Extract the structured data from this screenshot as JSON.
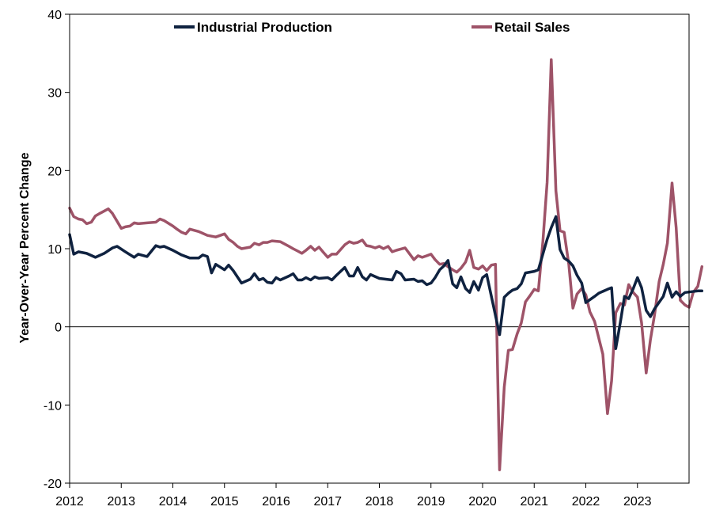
{
  "chart_data": {
    "type": "line",
    "title": "",
    "xlabel": "",
    "ylabel": "Year-Over-Year Percent Change",
    "ylim": [
      -20,
      40
    ],
    "yticks": [
      "40",
      "30",
      "20",
      "10",
      "0",
      "-10",
      "-20"
    ],
    "xlim": [
      2012.0,
      2024.0
    ],
    "xticks": [
      "2012",
      "2013",
      "2014",
      "2015",
      "2016",
      "2017",
      "2018",
      "2019",
      "2020",
      "2021",
      "2022",
      "2023"
    ],
    "grid": false,
    "legend": "top",
    "series": [
      {
        "name": "Industrial Production",
        "color": "#0f2240",
        "points": [
          [
            2012.0,
            11.8
          ],
          [
            2012.08,
            9.3
          ],
          [
            2012.17,
            9.6
          ],
          [
            2012.33,
            9.4
          ],
          [
            2012.5,
            8.9
          ],
          [
            2012.67,
            9.4
          ],
          [
            2012.83,
            10.1
          ],
          [
            2012.92,
            10.3
          ],
          [
            2013.08,
            9.6
          ],
          [
            2013.25,
            8.9
          ],
          [
            2013.33,
            9.3
          ],
          [
            2013.5,
            9.0
          ],
          [
            2013.67,
            10.4
          ],
          [
            2013.75,
            10.2
          ],
          [
            2013.83,
            10.3
          ],
          [
            2014.0,
            9.8
          ],
          [
            2014.17,
            9.2
          ],
          [
            2014.33,
            8.8
          ],
          [
            2014.5,
            8.8
          ],
          [
            2014.58,
            9.2
          ],
          [
            2014.67,
            9.0
          ],
          [
            2014.75,
            6.9
          ],
          [
            2014.83,
            8.0
          ],
          [
            2015.0,
            7.3
          ],
          [
            2015.08,
            7.9
          ],
          [
            2015.17,
            7.2
          ],
          [
            2015.33,
            5.6
          ],
          [
            2015.5,
            6.1
          ],
          [
            2015.58,
            6.8
          ],
          [
            2015.67,
            6.0
          ],
          [
            2015.75,
            6.2
          ],
          [
            2015.83,
            5.7
          ],
          [
            2015.92,
            5.6
          ],
          [
            2016.0,
            6.3
          ],
          [
            2016.08,
            6.0
          ],
          [
            2016.25,
            6.5
          ],
          [
            2016.33,
            6.8
          ],
          [
            2016.42,
            6.0
          ],
          [
            2016.5,
            6.0
          ],
          [
            2016.58,
            6.3
          ],
          [
            2016.67,
            6.0
          ],
          [
            2016.75,
            6.4
          ],
          [
            2016.83,
            6.2
          ],
          [
            2017.0,
            6.3
          ],
          [
            2017.08,
            6.0
          ],
          [
            2017.17,
            6.6
          ],
          [
            2017.33,
            7.6
          ],
          [
            2017.42,
            6.5
          ],
          [
            2017.5,
            6.5
          ],
          [
            2017.58,
            7.6
          ],
          [
            2017.67,
            6.4
          ],
          [
            2017.75,
            6.0
          ],
          [
            2017.83,
            6.7
          ],
          [
            2018.0,
            6.2
          ],
          [
            2018.25,
            6.0
          ],
          [
            2018.33,
            7.1
          ],
          [
            2018.42,
            6.8
          ],
          [
            2018.5,
            6.0
          ],
          [
            2018.67,
            6.1
          ],
          [
            2018.75,
            5.8
          ],
          [
            2018.83,
            5.9
          ],
          [
            2018.92,
            5.4
          ],
          [
            2019.0,
            5.6
          ],
          [
            2019.08,
            6.3
          ],
          [
            2019.17,
            7.3
          ],
          [
            2019.25,
            7.8
          ],
          [
            2019.33,
            8.5
          ],
          [
            2019.42,
            5.5
          ],
          [
            2019.5,
            5.0
          ],
          [
            2019.58,
            6.4
          ],
          [
            2019.67,
            4.9
          ],
          [
            2019.75,
            4.4
          ],
          [
            2019.83,
            5.8
          ],
          [
            2019.92,
            4.7
          ],
          [
            2020.0,
            6.3
          ],
          [
            2020.08,
            6.7
          ],
          [
            2020.33,
            -1.0
          ],
          [
            2020.42,
            3.8
          ],
          [
            2020.5,
            4.3
          ],
          [
            2020.58,
            4.7
          ],
          [
            2020.67,
            4.9
          ],
          [
            2020.75,
            5.5
          ],
          [
            2020.83,
            6.9
          ],
          [
            2021.0,
            7.1
          ],
          [
            2021.08,
            7.3
          ],
          [
            2021.25,
            11.2
          ],
          [
            2021.33,
            12.7
          ],
          [
            2021.42,
            14.1
          ],
          [
            2021.5,
            9.9
          ],
          [
            2021.58,
            8.8
          ],
          [
            2021.67,
            8.4
          ],
          [
            2021.75,
            7.8
          ],
          [
            2021.83,
            6.6
          ],
          [
            2021.92,
            5.6
          ],
          [
            2022.0,
            3.1
          ],
          [
            2022.17,
            3.9
          ],
          [
            2022.25,
            4.3
          ],
          [
            2022.42,
            4.8
          ],
          [
            2022.5,
            5.0
          ],
          [
            2022.58,
            -2.8
          ],
          [
            2022.67,
            0.6
          ],
          [
            2022.75,
            3.9
          ],
          [
            2022.83,
            3.6
          ],
          [
            2022.92,
            4.9
          ],
          [
            2023.0,
            6.3
          ],
          [
            2023.08,
            5.0
          ],
          [
            2023.17,
            2.1
          ],
          [
            2023.25,
            1.3
          ],
          [
            2023.33,
            2.3
          ],
          [
            2023.5,
            3.9
          ],
          [
            2023.58,
            5.6
          ],
          [
            2023.67,
            3.8
          ],
          [
            2023.75,
            4.5
          ],
          [
            2023.83,
            3.9
          ],
          [
            2023.92,
            4.4
          ],
          [
            2024.17,
            4.6
          ],
          [
            2024.25,
            4.6
          ]
        ]
      },
      {
        "name": "Retail Sales",
        "color": "#9e5368",
        "points": [
          [
            2012.0,
            15.2
          ],
          [
            2012.08,
            14.1
          ],
          [
            2012.17,
            13.8
          ],
          [
            2012.25,
            13.7
          ],
          [
            2012.33,
            13.2
          ],
          [
            2012.42,
            13.4
          ],
          [
            2012.5,
            14.2
          ],
          [
            2012.58,
            14.5
          ],
          [
            2012.75,
            15.1
          ],
          [
            2012.83,
            14.5
          ],
          [
            2013.0,
            12.6
          ],
          [
            2013.08,
            12.8
          ],
          [
            2013.17,
            12.9
          ],
          [
            2013.25,
            13.3
          ],
          [
            2013.33,
            13.2
          ],
          [
            2013.5,
            13.3
          ],
          [
            2013.67,
            13.4
          ],
          [
            2013.75,
            13.8
          ],
          [
            2013.83,
            13.6
          ],
          [
            2014.0,
            12.9
          ],
          [
            2014.08,
            12.5
          ],
          [
            2014.17,
            12.1
          ],
          [
            2014.25,
            11.9
          ],
          [
            2014.33,
            12.5
          ],
          [
            2014.5,
            12.2
          ],
          [
            2014.67,
            11.7
          ],
          [
            2014.83,
            11.5
          ],
          [
            2015.0,
            11.9
          ],
          [
            2015.08,
            11.2
          ],
          [
            2015.17,
            10.8
          ],
          [
            2015.25,
            10.3
          ],
          [
            2015.33,
            10.0
          ],
          [
            2015.5,
            10.2
          ],
          [
            2015.58,
            10.7
          ],
          [
            2015.67,
            10.5
          ],
          [
            2015.75,
            10.8
          ],
          [
            2015.83,
            10.8
          ],
          [
            2015.92,
            11.0
          ],
          [
            2016.08,
            10.9
          ],
          [
            2016.25,
            10.3
          ],
          [
            2016.33,
            10.0
          ],
          [
            2016.42,
            9.7
          ],
          [
            2016.5,
            9.4
          ],
          [
            2016.58,
            9.8
          ],
          [
            2016.67,
            10.3
          ],
          [
            2016.75,
            9.8
          ],
          [
            2016.83,
            10.2
          ],
          [
            2016.92,
            9.5
          ],
          [
            2017.0,
            8.9
          ],
          [
            2017.08,
            9.3
          ],
          [
            2017.17,
            9.3
          ],
          [
            2017.25,
            9.9
          ],
          [
            2017.33,
            10.5
          ],
          [
            2017.42,
            10.9
          ],
          [
            2017.5,
            10.7
          ],
          [
            2017.58,
            10.8
          ],
          [
            2017.67,
            11.1
          ],
          [
            2017.75,
            10.4
          ],
          [
            2017.83,
            10.3
          ],
          [
            2017.92,
            10.1
          ],
          [
            2018.0,
            10.3
          ],
          [
            2018.08,
            10.0
          ],
          [
            2018.17,
            10.3
          ],
          [
            2018.25,
            9.6
          ],
          [
            2018.33,
            9.8
          ],
          [
            2018.5,
            10.1
          ],
          [
            2018.67,
            8.6
          ],
          [
            2018.75,
            9.1
          ],
          [
            2018.83,
            8.9
          ],
          [
            2018.92,
            9.1
          ],
          [
            2019.0,
            9.3
          ],
          [
            2019.08,
            8.6
          ],
          [
            2019.17,
            8.0
          ],
          [
            2019.25,
            8.1
          ],
          [
            2019.33,
            7.7
          ],
          [
            2019.42,
            7.3
          ],
          [
            2019.5,
            7.0
          ],
          [
            2019.58,
            7.5
          ],
          [
            2019.67,
            8.3
          ],
          [
            2019.75,
            9.8
          ],
          [
            2019.83,
            7.6
          ],
          [
            2019.92,
            7.4
          ],
          [
            2020.0,
            7.8
          ],
          [
            2020.08,
            7.2
          ],
          [
            2020.17,
            7.9
          ],
          [
            2020.25,
            8.0
          ],
          [
            2020.33,
            -18.3
          ],
          [
            2020.42,
            -7.7
          ],
          [
            2020.5,
            -3.0
          ],
          [
            2020.58,
            -2.9
          ],
          [
            2020.67,
            -0.9
          ],
          [
            2020.75,
            0.5
          ],
          [
            2020.83,
            3.2
          ],
          [
            2020.92,
            4.0
          ],
          [
            2021.0,
            4.8
          ],
          [
            2021.08,
            4.6
          ],
          [
            2021.17,
            11.0
          ],
          [
            2021.25,
            18.5
          ],
          [
            2021.33,
            34.2
          ],
          [
            2021.42,
            17.4
          ],
          [
            2021.5,
            12.3
          ],
          [
            2021.58,
            12.1
          ],
          [
            2021.67,
            8.0
          ],
          [
            2021.75,
            2.4
          ],
          [
            2021.83,
            4.2
          ],
          [
            2021.92,
            4.9
          ],
          [
            2022.0,
            4.1
          ],
          [
            2022.08,
            1.9
          ],
          [
            2022.17,
            0.7
          ],
          [
            2022.33,
            -3.5
          ],
          [
            2022.42,
            -11.1
          ],
          [
            2022.5,
            -6.9
          ],
          [
            2022.58,
            1.8
          ],
          [
            2022.67,
            3.0
          ],
          [
            2022.75,
            2.8
          ],
          [
            2022.83,
            5.4
          ],
          [
            2022.92,
            4.4
          ],
          [
            2023.0,
            3.8
          ],
          [
            2023.08,
            0.5
          ],
          [
            2023.17,
            -5.9
          ],
          [
            2023.25,
            -1.7
          ],
          [
            2023.33,
            1.5
          ],
          [
            2023.42,
            5.8
          ],
          [
            2023.5,
            8.0
          ],
          [
            2023.58,
            10.7
          ],
          [
            2023.67,
            18.4
          ],
          [
            2023.75,
            12.7
          ],
          [
            2023.83,
            3.4
          ],
          [
            2023.92,
            2.8
          ],
          [
            2024.0,
            2.5
          ],
          [
            2024.08,
            4.4
          ],
          [
            2024.17,
            5.2
          ],
          [
            2024.25,
            7.7
          ]
        ]
      }
    ]
  }
}
